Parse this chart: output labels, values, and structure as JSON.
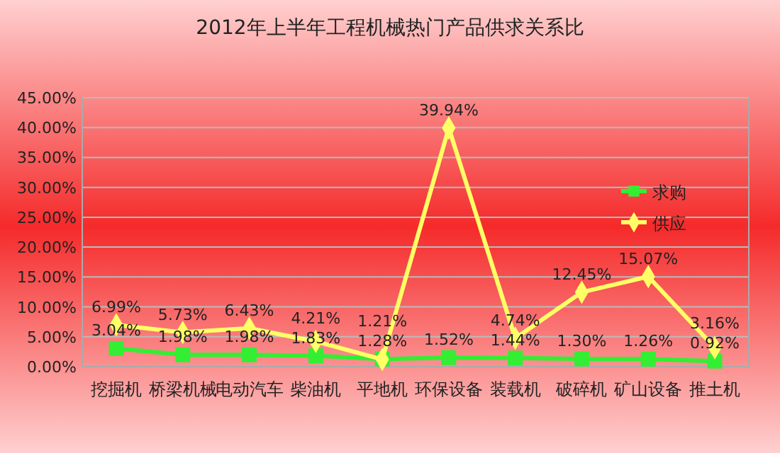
{
  "chart_data": {
    "type": "line",
    "title": "2012年上半年工程机械热门产品供求关系比",
    "categories": [
      "挖掘机",
      "桥梁机械",
      "电动汽车",
      "柴油机",
      "平地机",
      "环保设备",
      "装载机",
      "破碎机",
      "矿山设备",
      "推土机"
    ],
    "series": [
      {
        "name": "求购",
        "color": "#33ee33",
        "marker": "square",
        "values": [
          3.04,
          1.98,
          1.98,
          1.83,
          1.28,
          1.52,
          1.44,
          1.3,
          1.26,
          0.92
        ],
        "value_labels": [
          "3.04%",
          "1.98%",
          "1.98%",
          "1.83%",
          "1.28%",
          "1.52%",
          "1.44%",
          "1.30%",
          "1.26%",
          "0.92%"
        ]
      },
      {
        "name": "供应",
        "color": "#ffff66",
        "marker": "diamond",
        "values": [
          6.99,
          5.73,
          6.43,
          4.21,
          1.21,
          39.94,
          4.74,
          12.45,
          15.07,
          3.16
        ],
        "value_labels": [
          "6.99%",
          "5.73%",
          "6.43%",
          "4.21%",
          "1.21%",
          "39.94%",
          "4.74%",
          "12.45%",
          "15.07%",
          "3.16%"
        ]
      }
    ],
    "ylim": [
      0,
      45
    ],
    "yticks": [
      {
        "value": 0,
        "label": "0.00%"
      },
      {
        "value": 5,
        "label": "5.00%"
      },
      {
        "value": 10,
        "label": "10.00%"
      },
      {
        "value": 15,
        "label": "15.00%"
      },
      {
        "value": 20,
        "label": "20.00%"
      },
      {
        "value": 25,
        "label": "25.00%"
      },
      {
        "value": 30,
        "label": "30.00%"
      },
      {
        "value": 35,
        "label": "35.00%"
      },
      {
        "value": 40,
        "label": "40.00%"
      },
      {
        "value": 45,
        "label": "45.00%"
      }
    ],
    "grid": "y",
    "legend": "right"
  }
}
